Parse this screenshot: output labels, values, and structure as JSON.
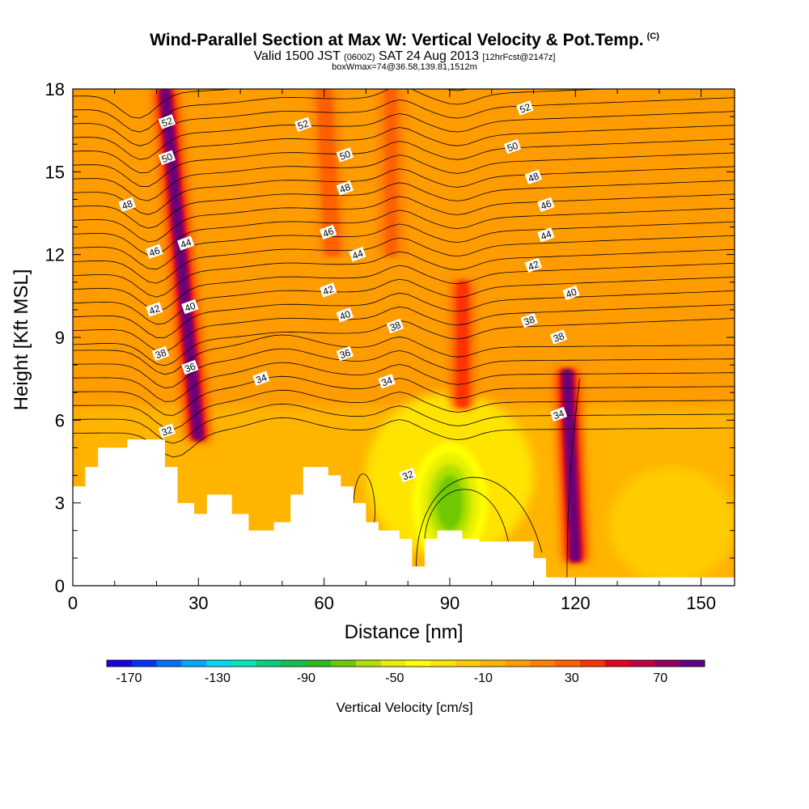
{
  "header": {
    "title": "Wind-Parallel Section at Max W: Vertical Velocity & Pot.Temp.",
    "title_mark": "(C)",
    "valid_prefix": "Valid 1500 JST ",
    "valid_utc": "(0600Z)",
    "valid_date": " SAT 24 Aug 2013 ",
    "valid_fcst": "[12hrFcst@2147z]",
    "box_info": "boxWmax=74@36.58,139.81,1512m"
  },
  "chart_data": {
    "type": "heatmap",
    "xlabel": "Distance [nm]",
    "ylabel": "Height [Kft MSL]",
    "xlim": [
      0,
      158
    ],
    "ylim": [
      0,
      18
    ],
    "x_ticks": [
      0,
      30,
      60,
      90,
      120,
      150
    ],
    "y_ticks": [
      0,
      3,
      6,
      9,
      12,
      15,
      18
    ],
    "x_tick_labels": [
      "0",
      "30",
      "60",
      "90",
      "120",
      "150"
    ],
    "y_tick_labels": [
      "0",
      "3",
      "6",
      "9",
      "12",
      "15",
      "18"
    ],
    "colorbar": {
      "title": "Vertical Velocity [cm/s]",
      "min": -180,
      "max": 90,
      "labels": [
        "-170",
        "-130",
        "-90",
        "-50",
        "-10",
        "30",
        "70"
      ],
      "label_values": [
        -170,
        -130,
        -90,
        -50,
        -10,
        30,
        70
      ],
      "colors": [
        "#1a00e0",
        "#0030ff",
        "#0070ff",
        "#00a8ff",
        "#00d8f0",
        "#00e8b8",
        "#00d080",
        "#10c050",
        "#30b820",
        "#70c800",
        "#b0e000",
        "#e8f000",
        "#ffff00",
        "#ffe400",
        "#ffcc00",
        "#ffb400",
        "#ff9c00",
        "#ff8000",
        "#ff6000",
        "#ff3000",
        "#e80020",
        "#c00040",
        "#900060",
        "#600080"
      ]
    },
    "updrafts": [
      {
        "x_base": 30,
        "x_top": 22,
        "y_bottom": 5.3,
        "y_top": 18,
        "peak_cm_s": 80
      },
      {
        "x_base": 120,
        "x_top": 118,
        "y_bottom": 0.9,
        "y_top": 7.8,
        "peak_cm_s": 80
      },
      {
        "x_base": 93,
        "x_top": 93,
        "y_bottom": 6.5,
        "y_top": 11,
        "peak_cm_s": 40
      },
      {
        "x_base": 62,
        "x_top": 60,
        "y_bottom": 12,
        "y_top": 18,
        "peak_cm_s": 30
      },
      {
        "x_base": 76,
        "x_top": 76,
        "y_bottom": 12,
        "y_top": 18,
        "peak_cm_s": 25
      }
    ],
    "downdrafts": [
      {
        "x": 90,
        "y": 3,
        "min_cm_s": -80
      }
    ],
    "potential_temperature_contours": {
      "units": "C",
      "labels": [
        {
          "text": "52",
          "x": 22.5,
          "y": 16.8
        },
        {
          "text": "50",
          "x": 22.5,
          "y": 15.5
        },
        {
          "text": "48",
          "x": 13,
          "y": 13.8
        },
        {
          "text": "46",
          "x": 19.5,
          "y": 12.1
        },
        {
          "text": "44",
          "x": 27,
          "y": 12.4
        },
        {
          "text": "42",
          "x": 19.5,
          "y": 10.0
        },
        {
          "text": "40",
          "x": 28,
          "y": 10.1
        },
        {
          "text": "38",
          "x": 21,
          "y": 8.4
        },
        {
          "text": "36",
          "x": 28,
          "y": 7.9
        },
        {
          "text": "34",
          "x": 45,
          "y": 7.5
        },
        {
          "text": "32",
          "x": 22.5,
          "y": 5.6
        },
        {
          "text": "52",
          "x": 55,
          "y": 16.7
        },
        {
          "text": "50",
          "x": 65,
          "y": 15.6
        },
        {
          "text": "48",
          "x": 65,
          "y": 14.4
        },
        {
          "text": "46",
          "x": 61,
          "y": 12.8
        },
        {
          "text": "44",
          "x": 68,
          "y": 12.0
        },
        {
          "text": "42",
          "x": 61,
          "y": 10.7
        },
        {
          "text": "40",
          "x": 65,
          "y": 9.8
        },
        {
          "text": "38",
          "x": 77,
          "y": 9.4
        },
        {
          "text": "36",
          "x": 65,
          "y": 8.4
        },
        {
          "text": "34",
          "x": 75,
          "y": 7.4
        },
        {
          "text": "32",
          "x": 80,
          "y": 4.0
        },
        {
          "text": "52",
          "x": 108,
          "y": 17.3
        },
        {
          "text": "50",
          "x": 105,
          "y": 15.9
        },
        {
          "text": "48",
          "x": 110,
          "y": 14.8
        },
        {
          "text": "46",
          "x": 113,
          "y": 13.8
        },
        {
          "text": "44",
          "x": 113,
          "y": 12.7
        },
        {
          "text": "42",
          "x": 110,
          "y": 11.6
        },
        {
          "text": "40",
          "x": 119,
          "y": 10.6
        },
        {
          "text": "38",
          "x": 109,
          "y": 9.6
        },
        {
          "text": "38",
          "x": 116,
          "y": 9.0
        },
        {
          "text": "34",
          "x": 116,
          "y": 6.2
        }
      ]
    },
    "terrain_steps": [
      [
        0,
        3.6
      ],
      [
        3,
        3.6
      ],
      [
        3,
        4.3
      ],
      [
        6,
        4.3
      ],
      [
        6,
        5.0
      ],
      [
        13,
        5.0
      ],
      [
        13,
        5.3
      ],
      [
        22,
        5.3
      ],
      [
        22,
        4.3
      ],
      [
        25,
        4.3
      ],
      [
        25,
        3.0
      ],
      [
        29,
        3.0
      ],
      [
        29,
        2.6
      ],
      [
        32,
        2.6
      ],
      [
        32,
        3.3
      ],
      [
        38,
        3.3
      ],
      [
        38,
        2.6
      ],
      [
        42,
        2.6
      ],
      [
        42,
        2.0
      ],
      [
        48,
        2.0
      ],
      [
        48,
        2.3
      ],
      [
        52,
        2.3
      ],
      [
        52,
        3.3
      ],
      [
        55,
        3.3
      ],
      [
        55,
        4.3
      ],
      [
        61,
        4.3
      ],
      [
        61,
        4.0
      ],
      [
        64,
        4.0
      ],
      [
        64,
        3.6
      ],
      [
        67,
        3.6
      ],
      [
        67,
        3.0
      ],
      [
        70,
        3.0
      ],
      [
        70,
        2.3
      ],
      [
        73,
        2.3
      ],
      [
        73,
        2.0
      ],
      [
        78,
        2.0
      ],
      [
        78,
        1.7
      ],
      [
        81,
        1.7
      ],
      [
        81,
        0.7
      ],
      [
        84,
        0.7
      ],
      [
        84,
        1.7
      ],
      [
        87,
        1.7
      ],
      [
        87,
        2.0
      ],
      [
        93,
        2.0
      ],
      [
        93,
        1.7
      ],
      [
        97,
        1.7
      ],
      [
        97,
        1.6
      ],
      [
        110,
        1.6
      ],
      [
        110,
        1.0
      ],
      [
        113,
        1.0
      ],
      [
        113,
        0.3
      ],
      [
        116,
        0.3
      ]
    ]
  }
}
